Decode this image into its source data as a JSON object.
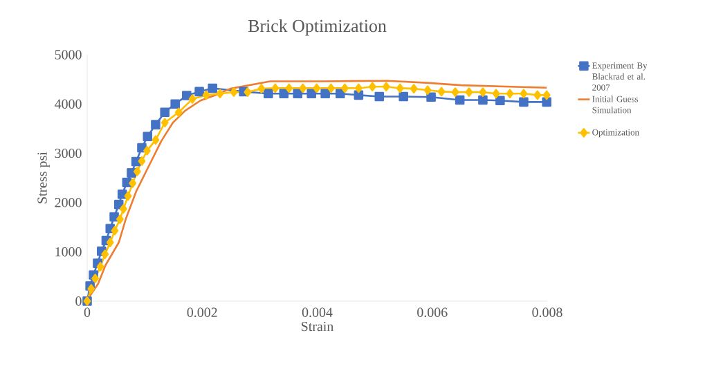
{
  "chart_data": {
    "type": "line",
    "title": "Brick Optimization",
    "xlabel": "Strain",
    "ylabel": "Stress psi",
    "xlim": [
      0,
      0.008
    ],
    "ylim": [
      0,
      5000
    ],
    "xticks": [
      0,
      0.002,
      0.004,
      0.006,
      0.008
    ],
    "yticks": [
      0,
      1000,
      2000,
      3000,
      4000,
      5000
    ],
    "grid": false,
    "legend": "right",
    "line_style": "solid",
    "series": [
      {
        "name": "Experiment By Blackrad et al. 2007",
        "color": "#4472c4",
        "marker": "square",
        "x": [
          0,
          5e-05,
          0.00011,
          0.00018,
          0.00025,
          0.00033,
          0.0004,
          0.00047,
          0.00055,
          0.00061,
          0.00069,
          0.00077,
          0.00085,
          0.00095,
          0.00105,
          0.00119,
          0.00135,
          0.00153,
          0.00173,
          0.00195,
          0.00218,
          0.00272,
          0.00315,
          0.00342,
          0.00366,
          0.0039,
          0.00414,
          0.0044,
          0.00472,
          0.00508,
          0.0055,
          0.00598,
          0.00648,
          0.00688,
          0.00718,
          0.00759,
          0.00799
        ],
        "values": [
          0,
          310,
          530,
          770,
          1010,
          1230,
          1470,
          1710,
          1960,
          2170,
          2410,
          2600,
          2830,
          3110,
          3340,
          3580,
          3830,
          4000,
          4170,
          4250,
          4320,
          4250,
          4210,
          4210,
          4210,
          4210,
          4210,
          4210,
          4180,
          4150,
          4150,
          4140,
          4080,
          4080,
          4070,
          4040,
          4040
        ]
      },
      {
        "name": "Initial Guess Simulation",
        "color": "#ed7d31",
        "marker": "none",
        "x": [
          0,
          5e-05,
          0.00019,
          0.00032,
          0.00055,
          0.00067,
          0.00085,
          0.00105,
          0.00129,
          0.00149,
          0.0017,
          0.00197,
          0.00221,
          0.00249,
          0.00318,
          0.0041,
          0.00522,
          0.0059,
          0.0065,
          0.00799
        ],
        "values": [
          0,
          110,
          350,
          730,
          1190,
          1660,
          2220,
          2690,
          3250,
          3620,
          3860,
          4070,
          4170,
          4310,
          4460,
          4460,
          4470,
          4430,
          4380,
          4330
        ]
      },
      {
        "name": "Optimization",
        "color": "#ffc000",
        "marker": "diamond",
        "x": [
          0,
          7e-05,
          0.00014,
          0.00023,
          0.00031,
          0.0004,
          0.00048,
          0.00057,
          0.00063,
          0.00071,
          0.00079,
          0.00087,
          0.00095,
          0.00104,
          0.00119,
          0.00135,
          0.00159,
          0.00183,
          0.00207,
          0.00231,
          0.00255,
          0.00279,
          0.00303,
          0.00327,
          0.00351,
          0.00375,
          0.00399,
          0.00424,
          0.00448,
          0.00472,
          0.00496,
          0.0052,
          0.00544,
          0.00568,
          0.00592,
          0.00616,
          0.0064,
          0.00664,
          0.00688,
          0.00711,
          0.00735,
          0.00759,
          0.00783,
          0.00799
        ],
        "values": [
          0,
          250,
          460,
          700,
          950,
          1190,
          1430,
          1660,
          1870,
          2130,
          2390,
          2630,
          2840,
          3050,
          3270,
          3620,
          3830,
          4100,
          4180,
          4210,
          4240,
          4240,
          4310,
          4320,
          4320,
          4320,
          4320,
          4320,
          4320,
          4320,
          4350,
          4350,
          4320,
          4310,
          4280,
          4250,
          4240,
          4240,
          4240,
          4210,
          4210,
          4210,
          4180,
          4180
        ]
      }
    ]
  }
}
